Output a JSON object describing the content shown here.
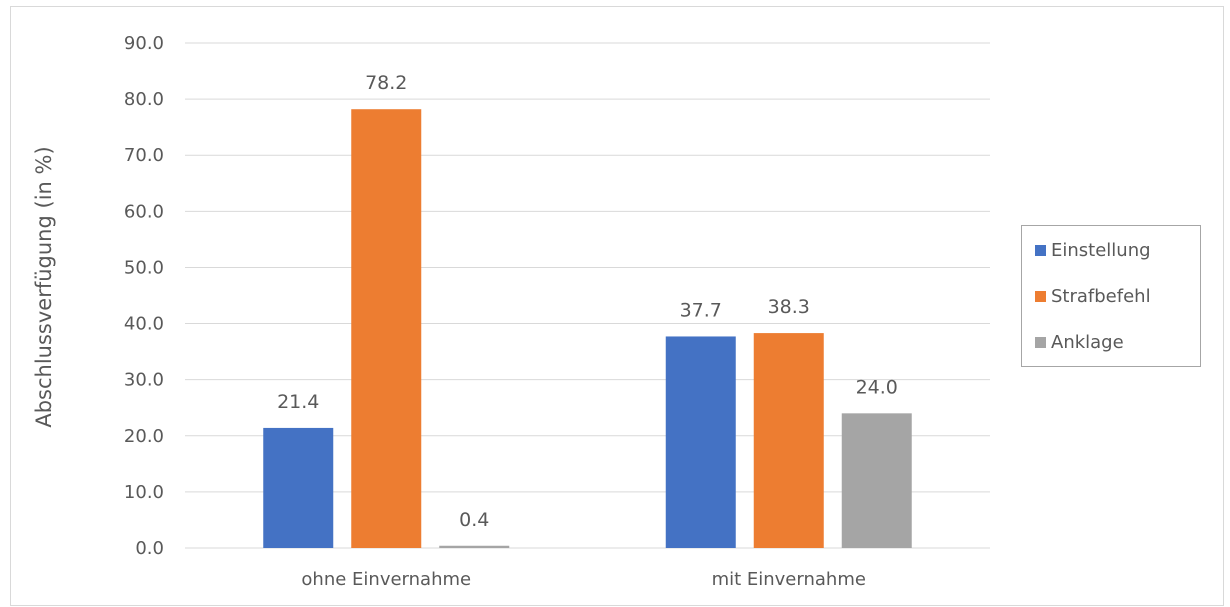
{
  "chart_data": {
    "type": "bar",
    "ylabel": "Abschlussverfügung (in %)",
    "ylim": [
      0,
      90
    ],
    "yticks": [
      "0.0",
      "10.0",
      "20.0",
      "30.0",
      "40.0",
      "50.0",
      "60.0",
      "70.0",
      "80.0",
      "90.0"
    ],
    "categories": [
      "ohne Einvernahme",
      "mit Einvernahme"
    ],
    "series": [
      {
        "name": "Einstellung",
        "values": [
          21.4,
          37.7
        ],
        "labels": [
          "21.4",
          "37.7"
        ],
        "color": "#4472c4"
      },
      {
        "name": "Strafbefehl",
        "values": [
          78.2,
          38.3
        ],
        "labels": [
          "78.2",
          "38.3"
        ],
        "color": "#ed7d31"
      },
      {
        "name": "Anklage",
        "values": [
          0.4,
          24.0
        ],
        "labels": [
          "0.4",
          "24.0"
        ],
        "color": "#a5a5a5"
      }
    ],
    "grid": true,
    "legend_position": "right"
  }
}
